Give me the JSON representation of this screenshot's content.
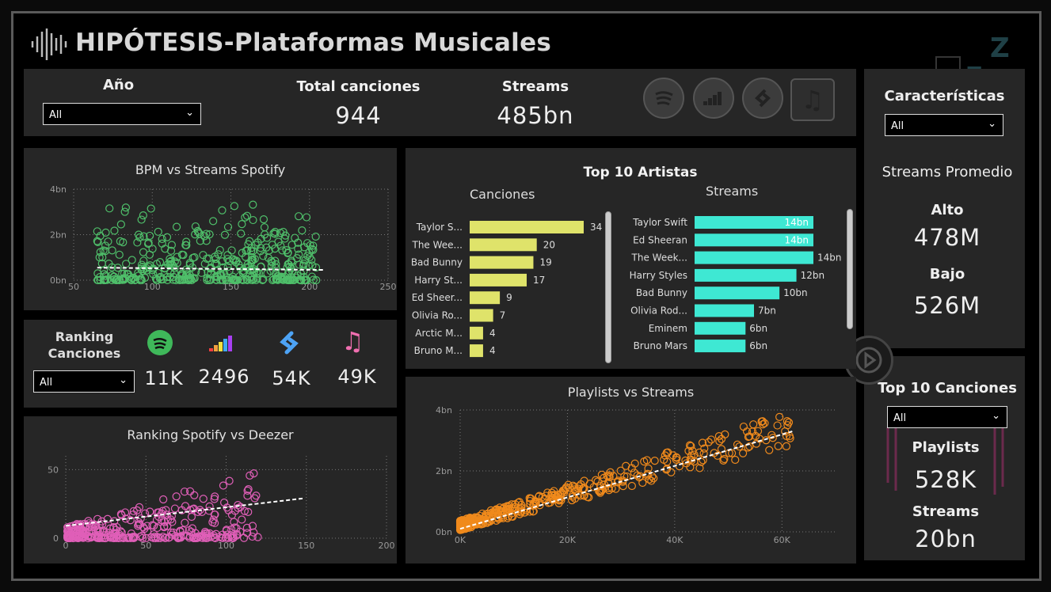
{
  "header": {
    "title": "HIPÓTESIS-Plataformas Musicales"
  },
  "filters": {
    "year_label": "Año",
    "year_value": "All",
    "features_label": "Características",
    "features_value": "All",
    "ranking_value": "All",
    "top_songs_value": "All"
  },
  "kpis": {
    "total_songs_label": "Total canciones",
    "total_songs": "944",
    "streams_label": "Streams",
    "streams": "485bn"
  },
  "avg": {
    "title": "Streams Promedio",
    "high_label": "Alto",
    "high": "478M",
    "low_label": "Bajo",
    "low": "526M"
  },
  "ranking": {
    "title_line1": "Ranking",
    "title_line2": "Canciones",
    "spotify": "11K",
    "deezer": "2496",
    "shazam": "54K",
    "apple": "49K"
  },
  "top_songs": {
    "title": "Top 10 Canciones",
    "playlists_label": "Playlists",
    "playlists": "528K",
    "streams_label": "Streams",
    "streams": "20bn"
  },
  "top_artists": {
    "title": "Top 10 Artistas",
    "songs_header": "Canciones",
    "streams_header": "Streams",
    "songs": [
      {
        "name": "Taylor S...",
        "value": 34
      },
      {
        "name": "The Wee...",
        "value": 20
      },
      {
        "name": "Bad Bunny",
        "value": 19
      },
      {
        "name": "Harry St...",
        "value": 17
      },
      {
        "name": "Ed Sheer...",
        "value": 9
      },
      {
        "name": "Olivia Ro...",
        "value": 7
      },
      {
        "name": "Arctic M...",
        "value": 4
      },
      {
        "name": "Bruno M...",
        "value": 4
      }
    ],
    "streams": [
      {
        "name": "Taylor Swift",
        "value": 14,
        "label": "14bn"
      },
      {
        "name": "Ed Sheeran",
        "value": 14,
        "label": "14bn"
      },
      {
        "name": "The Week...",
        "value": 14,
        "label": "14bn"
      },
      {
        "name": "Harry Styles",
        "value": 12,
        "label": "12bn"
      },
      {
        "name": "Bad Bunny",
        "value": 10,
        "label": "10bn"
      },
      {
        "name": "Olivia Rod...",
        "value": 7,
        "label": "7bn"
      },
      {
        "name": "Eminem",
        "value": 6,
        "label": "6bn"
      },
      {
        "name": "Bruno Mars",
        "value": 6,
        "label": "6bn"
      }
    ]
  },
  "chart_data": [
    {
      "type": "scatter",
      "title": "BPM vs Streams Spotify",
      "x_ticks": [
        "50",
        "100",
        "150",
        "200",
        "250"
      ],
      "y_ticks": [
        "0bn",
        "2bn",
        "4bn"
      ],
      "xlim": [
        50,
        250
      ],
      "ylim": [
        0,
        4
      ],
      "color": "#4fbf6a",
      "trend": [
        [
          65,
          0.55
        ],
        [
          210,
          0.45
        ]
      ]
    },
    {
      "type": "scatter",
      "title": "Ranking Spotify vs Deezer",
      "x_ticks": [
        "0",
        "50",
        "100",
        "150",
        "200"
      ],
      "y_ticks": [
        "0",
        "50"
      ],
      "xlim": [
        0,
        200
      ],
      "ylim": [
        0,
        60
      ],
      "color": "#e05fb8",
      "trend": [
        [
          0,
          9
        ],
        [
          148,
          29
        ]
      ]
    },
    {
      "type": "scatter",
      "title": "Playlists vs Streams",
      "x_ticks": [
        "0K",
        "20K",
        "40K",
        "60K"
      ],
      "y_ticks": [
        "0bn",
        "2bn",
        "4bn"
      ],
      "xlim": [
        0,
        70
      ],
      "ylim": [
        0,
        4
      ],
      "color": "#f08a1c",
      "trend": [
        [
          0,
          0.1
        ],
        [
          62,
          3.3
        ]
      ]
    }
  ],
  "colors": {
    "panel": "#262626",
    "songs_bar": "#dfe36a",
    "streams_bar": "#3ee8d3"
  }
}
